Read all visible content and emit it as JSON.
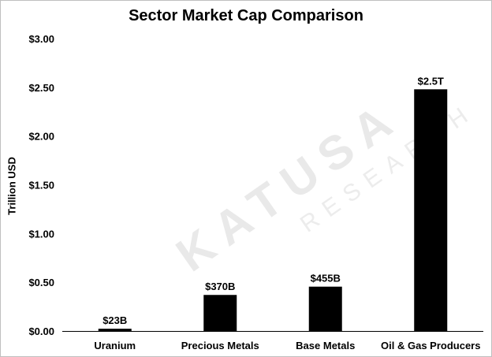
{
  "chart_data": {
    "type": "bar",
    "title": "Sector Market Cap Comparison",
    "xlabel": "",
    "ylabel": "Trillion USD",
    "categories": [
      "Uranium",
      "Precious Metals",
      "Base Metals",
      "Oil & Gas Producers"
    ],
    "values": [
      0.023,
      0.37,
      0.455,
      2.48
    ],
    "data_labels": [
      "$23B",
      "$370B",
      "$455B",
      "$2.5T"
    ],
    "ylim": [
      0,
      3.0
    ],
    "yticks": [
      0,
      0.5,
      1.0,
      1.5,
      2.0,
      2.5,
      3.0
    ],
    "ytick_labels": [
      "$0.00",
      "$0.50",
      "$1.00",
      "$1.50",
      "$2.00",
      "$2.50",
      "$3.00"
    ],
    "bar_color": "#000000",
    "grid": false,
    "legend": "none"
  },
  "watermark": {
    "brand": "KATUSA",
    "sub": "RESEARCH"
  }
}
